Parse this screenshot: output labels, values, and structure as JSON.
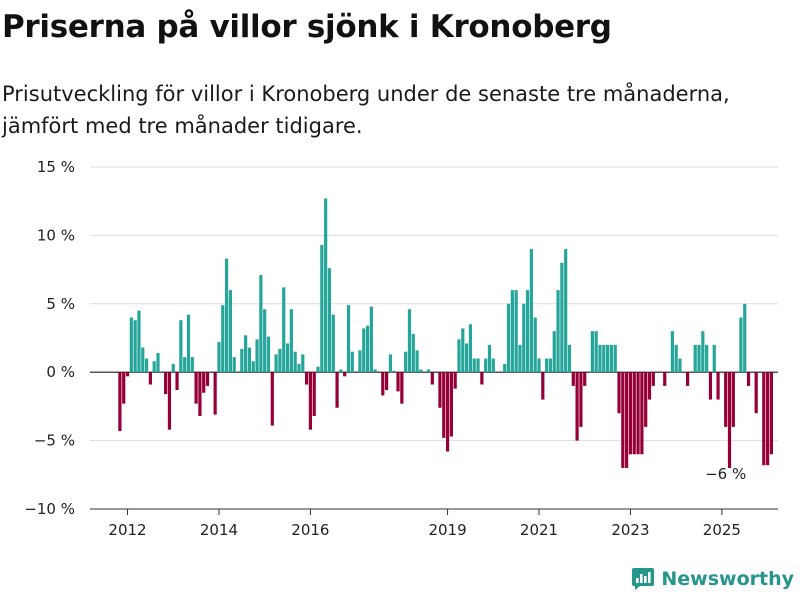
{
  "title": "Priserna på villor sjönk i Kronoberg",
  "subtitle": "Prisutveckling för villor i Kronoberg under de senaste tre månaderna, jämfört med tre månader tidigare.",
  "brand": {
    "name": "Newsworthy",
    "icon": "newsworthy-logo-icon",
    "color": "#26958b"
  },
  "chart_data": {
    "type": "bar",
    "x_start": "2011-11",
    "frequency": "monthly",
    "values": [
      -4.3,
      -2.3,
      -0.3,
      4,
      3.8,
      4.5,
      1.8,
      1,
      -0.9,
      0.8,
      1.4,
      0,
      -1.6,
      -4.2,
      0.6,
      -1.3,
      3.8,
      1.1,
      4.2,
      1.1,
      -2.3,
      -3.2,
      -1.5,
      -1,
      0,
      -3.1,
      2.2,
      4.9,
      8.3,
      6,
      1.1,
      0,
      1.7,
      2.7,
      1.8,
      0.8,
      2.4,
      7.1,
      4.6,
      2.6,
      -3.9,
      1.3,
      1.7,
      6.2,
      2.1,
      4.6,
      1.5,
      0.6,
      1.3,
      -0.9,
      -4.2,
      -3.2,
      0.4,
      9.3,
      12.7,
      7.6,
      4.2,
      -2.6,
      0.2,
      -0.3,
      4.9,
      1.5,
      0,
      1.6,
      3.2,
      3.4,
      4.8,
      0.2,
      0,
      -1.7,
      -1.3,
      1.3,
      0.1,
      -1.4,
      -2.3,
      1.5,
      4.6,
      2.8,
      1.6,
      0.2,
      0,
      0.2,
      -0.9,
      0,
      -2.6,
      -4.8,
      -5.8,
      -4.7,
      -1.2,
      2.4,
      3.2,
      2.1,
      3.5,
      1,
      1,
      -0.9,
      1,
      2,
      1,
      0,
      0,
      0.6,
      5,
      6,
      6,
      2,
      5,
      6,
      9,
      4,
      1,
      -2,
      1,
      1,
      3,
      6,
      8,
      9,
      2,
      -1,
      -5,
      -4,
      -1,
      0,
      3,
      3,
      2,
      2,
      2,
      2,
      2,
      -3,
      -7,
      -7,
      -6,
      -6,
      -6,
      -6,
      -4,
      -2,
      -1,
      0,
      0,
      -1,
      0,
      3,
      2,
      1,
      0,
      -1,
      0,
      2,
      2,
      3,
      2,
      -2,
      2,
      -2,
      0,
      -4,
      -7,
      -4,
      0,
      4,
      5,
      -1,
      0,
      -3,
      0,
      -6.8,
      -6.8,
      -6
    ],
    "positive_color": "#26a69a",
    "negative_color": "#960038",
    "ylim": [
      -10,
      15
    ],
    "yticks": [
      -10,
      -5,
      0,
      5,
      10,
      15
    ],
    "ytick_labels": [
      "−10 %",
      "−5 %",
      "0 %",
      "5 %",
      "10 %",
      "15 %"
    ],
    "xticks": [
      "2012-01",
      "2014-01",
      "2016-01",
      "2019-01",
      "2021-01",
      "2023-01",
      "2025-01"
    ],
    "xtick_labels": [
      "2012",
      "2014",
      "2016",
      "2019",
      "2021",
      "2023",
      "2025"
    ],
    "grid": true,
    "annotation": {
      "x": "2025-02",
      "text": "−6 %"
    }
  }
}
